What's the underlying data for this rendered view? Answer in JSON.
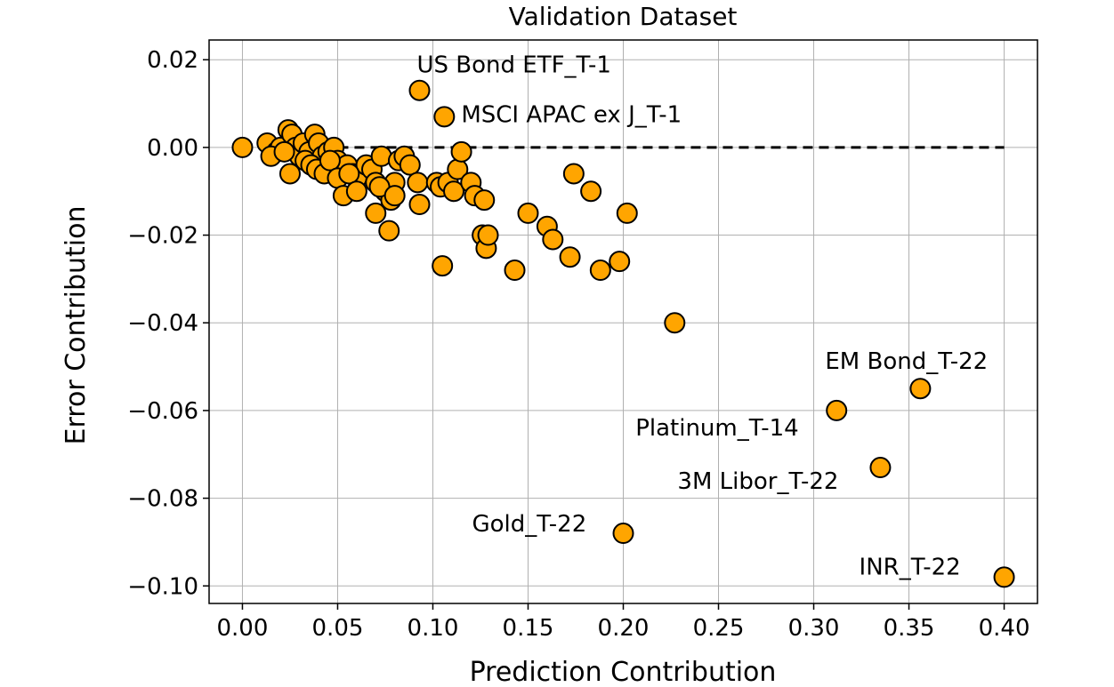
{
  "chart_data": {
    "type": "scatter",
    "title": "Validation Dataset",
    "xlabel": "Prediction Contribution",
    "ylabel": "Error Contribution",
    "xlim": [
      -0.0175,
      0.4175
    ],
    "ylim": [
      -0.104,
      0.0245
    ],
    "xticks": [
      0.0,
      0.05,
      0.1,
      0.15,
      0.2,
      0.25,
      0.3,
      0.35,
      0.4
    ],
    "xtick_labels": [
      "0.00",
      "0.05",
      "0.10",
      "0.15",
      "0.20",
      "0.25",
      "0.30",
      "0.35",
      "0.40"
    ],
    "yticks": [
      0.02,
      0.0,
      -0.02,
      -0.04,
      -0.06,
      -0.08,
      -0.1
    ],
    "ytick_labels": [
      "0.02",
      "0.00",
      "−0.02",
      "−0.04",
      "−0.06",
      "−0.08",
      "−0.10"
    ],
    "grid": true,
    "reference_line": {
      "y": 0.0,
      "x_start": 0.0,
      "x_end": 0.4,
      "style": "dashed"
    },
    "marker_color": "#ffa500",
    "marker_edge_color": "#000000",
    "points": [
      [
        0.0,
        0.0
      ],
      [
        0.013,
        0.001
      ],
      [
        0.018,
        -0.001
      ],
      [
        0.02,
        0.0
      ],
      [
        0.024,
        0.004
      ],
      [
        0.026,
        0.003
      ],
      [
        0.028,
        0.0
      ],
      [
        0.03,
        -0.002
      ],
      [
        0.032,
        0.001
      ],
      [
        0.035,
        -0.001
      ],
      [
        0.038,
        0.003
      ],
      [
        0.04,
        0.001
      ],
      [
        0.042,
        -0.002
      ],
      [
        0.045,
        -0.001
      ],
      [
        0.048,
        0.0
      ],
      [
        0.05,
        -0.003
      ],
      [
        0.052,
        -0.005
      ],
      [
        0.055,
        -0.004
      ],
      [
        0.058,
        -0.006
      ],
      [
        0.06,
        -0.007
      ],
      [
        0.065,
        -0.004
      ],
      [
        0.068,
        -0.005
      ],
      [
        0.07,
        -0.008
      ],
      [
        0.073,
        -0.002
      ],
      [
        0.075,
        -0.01
      ],
      [
        0.078,
        -0.012
      ],
      [
        0.08,
        -0.008
      ],
      [
        0.082,
        -0.003
      ],
      [
        0.085,
        -0.002
      ],
      [
        0.088,
        -0.004
      ],
      [
        0.015,
        -0.002
      ],
      [
        0.022,
        -0.001
      ],
      [
        0.025,
        -0.006
      ],
      [
        0.033,
        -0.003
      ],
      [
        0.036,
        -0.004
      ],
      [
        0.039,
        -0.005
      ],
      [
        0.043,
        -0.006
      ],
      [
        0.046,
        -0.003
      ],
      [
        0.05,
        -0.007
      ],
      [
        0.053,
        -0.011
      ],
      [
        0.056,
        -0.006
      ],
      [
        0.06,
        -0.01
      ],
      [
        0.07,
        -0.015
      ],
      [
        0.072,
        -0.009
      ],
      [
        0.077,
        -0.019
      ],
      [
        0.08,
        -0.011
      ],
      [
        0.092,
        -0.008
      ],
      [
        0.093,
        -0.013
      ],
      [
        0.102,
        -0.008
      ],
      [
        0.104,
        -0.009
      ],
      [
        0.108,
        -0.008
      ],
      [
        0.111,
        -0.01
      ],
      [
        0.113,
        -0.005
      ],
      [
        0.115,
        -0.001
      ],
      [
        0.12,
        -0.008
      ],
      [
        0.122,
        -0.011
      ],
      [
        0.126,
        -0.02
      ],
      [
        0.127,
        -0.012
      ],
      [
        0.128,
        -0.023
      ],
      [
        0.129,
        -0.02
      ],
      [
        0.105,
        -0.027
      ],
      [
        0.143,
        -0.028
      ],
      [
        0.15,
        -0.015
      ],
      [
        0.16,
        -0.018
      ],
      [
        0.163,
        -0.021
      ],
      [
        0.172,
        -0.025
      ],
      [
        0.174,
        -0.006
      ],
      [
        0.183,
        -0.01
      ],
      [
        0.188,
        -0.028
      ],
      [
        0.198,
        -0.026
      ],
      [
        0.202,
        -0.015
      ],
      [
        0.227,
        -0.04
      ],
      [
        0.093,
        0.013
      ],
      [
        0.106,
        0.007
      ],
      [
        0.312,
        -0.06
      ],
      [
        0.356,
        -0.055
      ],
      [
        0.335,
        -0.073
      ],
      [
        0.2,
        -0.088
      ],
      [
        0.4,
        -0.098
      ]
    ],
    "annotations": [
      {
        "text": "US Bond ETF_T-1",
        "x": 0.093,
        "y": 0.013
      },
      {
        "text": "MSCI APAC ex J_T-1",
        "x": 0.106,
        "y": 0.007
      },
      {
        "text": "EM Bond_T-22",
        "x": 0.356,
        "y": -0.055
      },
      {
        "text": "Platinum_T-14",
        "x": 0.312,
        "y": -0.06
      },
      {
        "text": "3M Libor_T-22",
        "x": 0.335,
        "y": -0.073
      },
      {
        "text": "Gold_T-22",
        "x": 0.2,
        "y": -0.088
      },
      {
        "text": "INR_T-22",
        "x": 0.4,
        "y": -0.098
      }
    ]
  }
}
